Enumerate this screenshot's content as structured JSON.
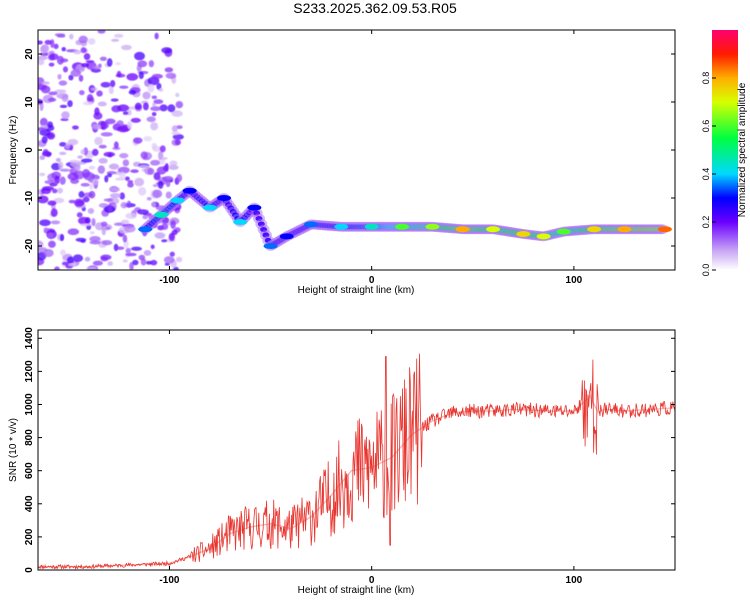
{
  "title": "S233.2025.362.09.53.R05",
  "chart_data": [
    {
      "type": "heatmap",
      "xlabel": "Height of straight line (km)",
      "ylabel": "Frequency (Hz)",
      "xlim": [
        -165,
        150
      ],
      "ylim": [
        -25,
        25
      ],
      "xticks": [
        -100,
        0,
        100
      ],
      "xtick_labels": [
        "-100",
        "0",
        "100"
      ],
      "yticks": [
        -20,
        -10,
        0,
        10,
        20
      ],
      "ytick_labels": [
        "-20",
        "-10",
        "0",
        "10",
        "20"
      ],
      "colorbar": {
        "label": "Normalized spectral amplitude",
        "range": [
          0,
          1
        ],
        "ticks": [
          0,
          0.2,
          0.4,
          0.6,
          0.8
        ],
        "tick_labels": [
          "0.0",
          "0.2",
          "0.4",
          "0.6",
          "0.8"
        ]
      },
      "ridge": [
        {
          "x": -112,
          "y": -16.5,
          "a": 0.35
        },
        {
          "x": -104,
          "y": -13.5,
          "a": 0.45
        },
        {
          "x": -96,
          "y": -10.5,
          "a": 0.4
        },
        {
          "x": -90,
          "y": -8.5,
          "a": 0.3
        },
        {
          "x": -80,
          "y": -12,
          "a": 0.4
        },
        {
          "x": -73,
          "y": -10,
          "a": 0.3
        },
        {
          "x": -65,
          "y": -15,
          "a": 0.4
        },
        {
          "x": -58,
          "y": -12,
          "a": 0.3
        },
        {
          "x": -50,
          "y": -20,
          "a": 0.35
        },
        {
          "x": -42,
          "y": -18,
          "a": 0.3
        },
        {
          "x": -30,
          "y": -15.5,
          "a": 0.35
        },
        {
          "x": -15,
          "y": -16,
          "a": 0.4
        },
        {
          "x": 0,
          "y": -16,
          "a": 0.45
        },
        {
          "x": 15,
          "y": -16,
          "a": 0.6
        },
        {
          "x": 30,
          "y": -16,
          "a": 0.65
        },
        {
          "x": 45,
          "y": -16.5,
          "a": 0.8
        },
        {
          "x": 60,
          "y": -16.5,
          "a": 0.7
        },
        {
          "x": 75,
          "y": -17.5,
          "a": 0.75
        },
        {
          "x": 85,
          "y": -18,
          "a": 0.7
        },
        {
          "x": 95,
          "y": -17,
          "a": 0.6
        },
        {
          "x": 110,
          "y": -16.5,
          "a": 0.75
        },
        {
          "x": 125,
          "y": -16.5,
          "a": 0.8
        },
        {
          "x": 145,
          "y": -16.5,
          "a": 0.85
        }
      ]
    },
    {
      "type": "line",
      "xlabel": "Height of straight line (km)",
      "ylabel": "SNR (10 * v/v)",
      "xlim": [
        -165,
        150
      ],
      "ylim": [
        0,
        1450
      ],
      "xticks": [
        -100,
        0,
        100
      ],
      "xtick_labels": [
        "-100",
        "0",
        "100"
      ],
      "yticks": [
        0,
        200,
        400,
        600,
        800,
        1000,
        1200,
        1400
      ],
      "ytick_labels": [
        "0",
        "200",
        "400",
        "600",
        "800",
        "1000",
        "1200",
        "1400"
      ],
      "color": "#e8352f",
      "x": [
        -165,
        -140,
        -120,
        -100,
        -90,
        -80,
        -70,
        -60,
        -50,
        -40,
        -30,
        -20,
        -10,
        0,
        10,
        20,
        30,
        40,
        50,
        60,
        70,
        80,
        90,
        100,
        108,
        112,
        115,
        125,
        150
      ],
      "y": [
        20,
        20,
        30,
        40,
        80,
        130,
        220,
        260,
        280,
        250,
        320,
        450,
        600,
        620,
        680,
        820,
        900,
        950,
        960,
        960,
        970,
        965,
        960,
        960,
        1050,
        950,
        970,
        960,
        980
      ]
    }
  ]
}
